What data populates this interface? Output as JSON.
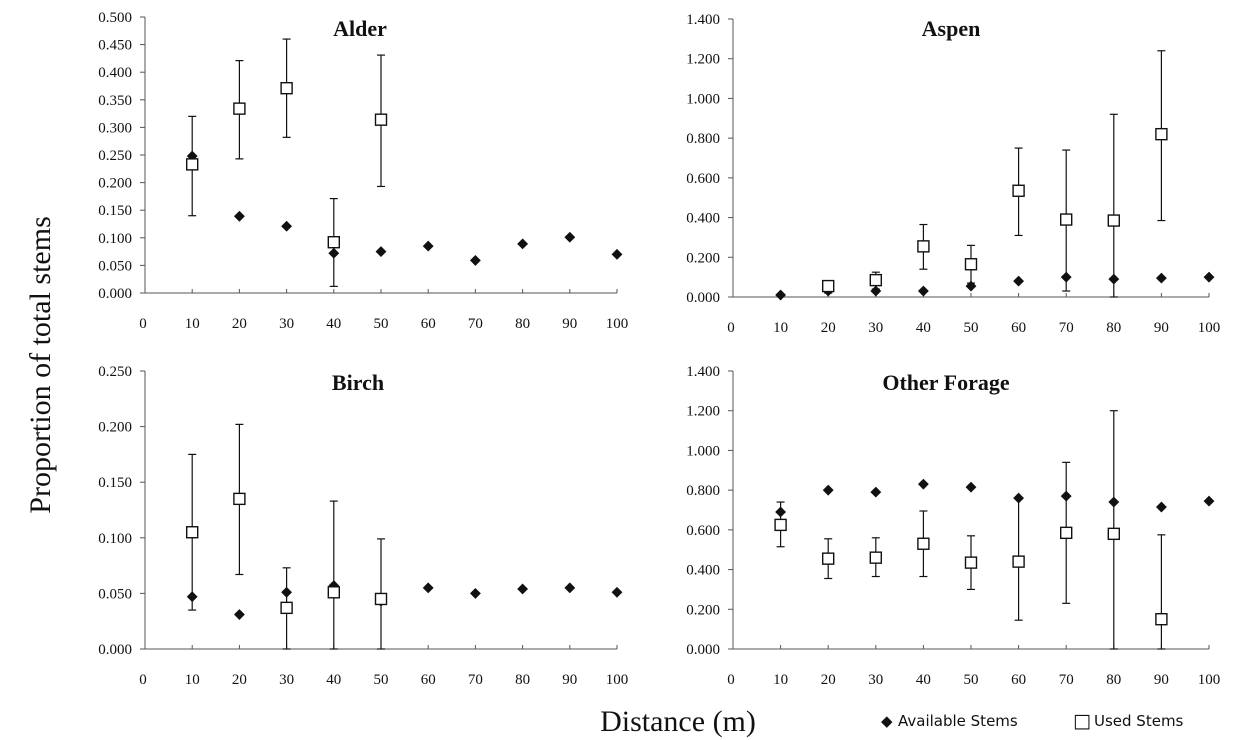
{
  "figure": {
    "ylabel": "Proportion of total stems",
    "xlabel": "Distance (m)"
  },
  "legend": {
    "available": {
      "label": "Available Stems",
      "symbol": "◆"
    },
    "used": {
      "label": "Used Stems",
      "symbol": "□"
    },
    "placement": "bottom-right"
  },
  "chart_data": [
    {
      "type": "scatter",
      "title": "Alder",
      "xlim": [
        0,
        100
      ],
      "ylim": [
        0,
        0.5
      ],
      "xticks": [
        "0",
        "10",
        "20",
        "30",
        "40",
        "50",
        "60",
        "70",
        "80",
        "90",
        "100"
      ],
      "yticks": [
        "0.000",
        "0.050",
        "0.100",
        "0.150",
        "0.200",
        "0.250",
        "0.300",
        "0.350",
        "0.400",
        "0.450",
        "0.500"
      ],
      "available": {
        "x": [
          10,
          20,
          30,
          40,
          50,
          60,
          70,
          80,
          90,
          100
        ],
        "y": [
          0.248,
          0.139,
          0.121,
          0.072,
          0.075,
          0.085,
          0.059,
          0.089,
          0.101,
          0.07
        ]
      },
      "used": {
        "x": [
          10,
          20,
          30,
          40,
          50
        ],
        "y": [
          0.233,
          0.334,
          0.371,
          0.092,
          0.314
        ],
        "err_low": [
          0.14,
          0.243,
          0.282,
          0.012,
          0.193
        ],
        "err_high": [
          0.32,
          0.421,
          0.46,
          0.171,
          0.431
        ]
      }
    },
    {
      "type": "scatter",
      "title": "Aspen",
      "xlim": [
        0,
        100
      ],
      "ylim": [
        0,
        1.4
      ],
      "xticks": [
        "0",
        "10",
        "20",
        "30",
        "40",
        "50",
        "60",
        "70",
        "80",
        "90",
        "100"
      ],
      "yticks": [
        "0.000",
        "0.200",
        "0.400",
        "0.600",
        "0.800",
        "1.000",
        "1.200",
        "1.400"
      ],
      "available": {
        "x": [
          10,
          20,
          30,
          40,
          50,
          60,
          70,
          80,
          90,
          100
        ],
        "y": [
          0.01,
          0.03,
          0.03,
          0.03,
          0.055,
          0.08,
          0.1,
          0.09,
          0.095,
          0.1
        ]
      },
      "used": {
        "x": [
          20,
          30,
          40,
          50,
          60,
          70,
          80,
          90
        ],
        "y": [
          0.055,
          0.085,
          0.255,
          0.165,
          0.535,
          0.39,
          0.385,
          0.82
        ],
        "err_low": [
          0.02,
          0.04,
          0.14,
          0.07,
          0.31,
          0.03,
          0.0,
          0.385
        ],
        "err_high": [
          0.08,
          0.125,
          0.365,
          0.26,
          0.75,
          0.74,
          0.92,
          1.24
        ]
      }
    },
    {
      "type": "scatter",
      "title": "Birch",
      "xlim": [
        0,
        100
      ],
      "ylim": [
        0,
        0.25
      ],
      "xticks": [
        "0",
        "10",
        "20",
        "30",
        "40",
        "50",
        "60",
        "70",
        "80",
        "90",
        "100"
      ],
      "yticks": [
        "0.000",
        "0.050",
        "0.100",
        "0.150",
        "0.200",
        "0.250"
      ],
      "available": {
        "x": [
          10,
          20,
          30,
          40,
          50,
          60,
          70,
          80,
          90,
          100
        ],
        "y": [
          0.047,
          0.031,
          0.051,
          0.057,
          0.043,
          0.055,
          0.05,
          0.054,
          0.055,
          0.051
        ]
      },
      "used": {
        "x": [
          10,
          20,
          30,
          40,
          50
        ],
        "y": [
          0.105,
          0.135,
          0.037,
          0.051,
          0.045
        ],
        "err_low": [
          0.035,
          0.067,
          0.0,
          0.0,
          0.0
        ],
        "err_high": [
          0.175,
          0.202,
          0.073,
          0.133,
          0.099
        ]
      }
    },
    {
      "type": "scatter",
      "title": "Other Forage",
      "xlim": [
        0,
        100
      ],
      "ylim": [
        0,
        1.4
      ],
      "xticks": [
        "0",
        "10",
        "20",
        "30",
        "40",
        "50",
        "60",
        "70",
        "80",
        "90",
        "100"
      ],
      "yticks": [
        "0.000",
        "0.200",
        "0.400",
        "0.600",
        "0.800",
        "1.000",
        "1.200",
        "1.400"
      ],
      "available": {
        "x": [
          10,
          20,
          30,
          40,
          50,
          60,
          70,
          80,
          90,
          100
        ],
        "y": [
          0.69,
          0.8,
          0.79,
          0.83,
          0.815,
          0.76,
          0.77,
          0.74,
          0.715,
          0.745
        ]
      },
      "used": {
        "x": [
          10,
          20,
          30,
          40,
          50,
          60,
          70,
          80,
          90
        ],
        "y": [
          0.625,
          0.455,
          0.46,
          0.53,
          0.435,
          0.44,
          0.585,
          0.58,
          0.15
        ],
        "err_low": [
          0.515,
          0.355,
          0.365,
          0.365,
          0.3,
          0.145,
          0.23,
          0.0,
          0.0
        ],
        "err_high": [
          0.74,
          0.555,
          0.56,
          0.695,
          0.57,
          0.76,
          0.94,
          1.2,
          0.575
        ]
      }
    }
  ]
}
